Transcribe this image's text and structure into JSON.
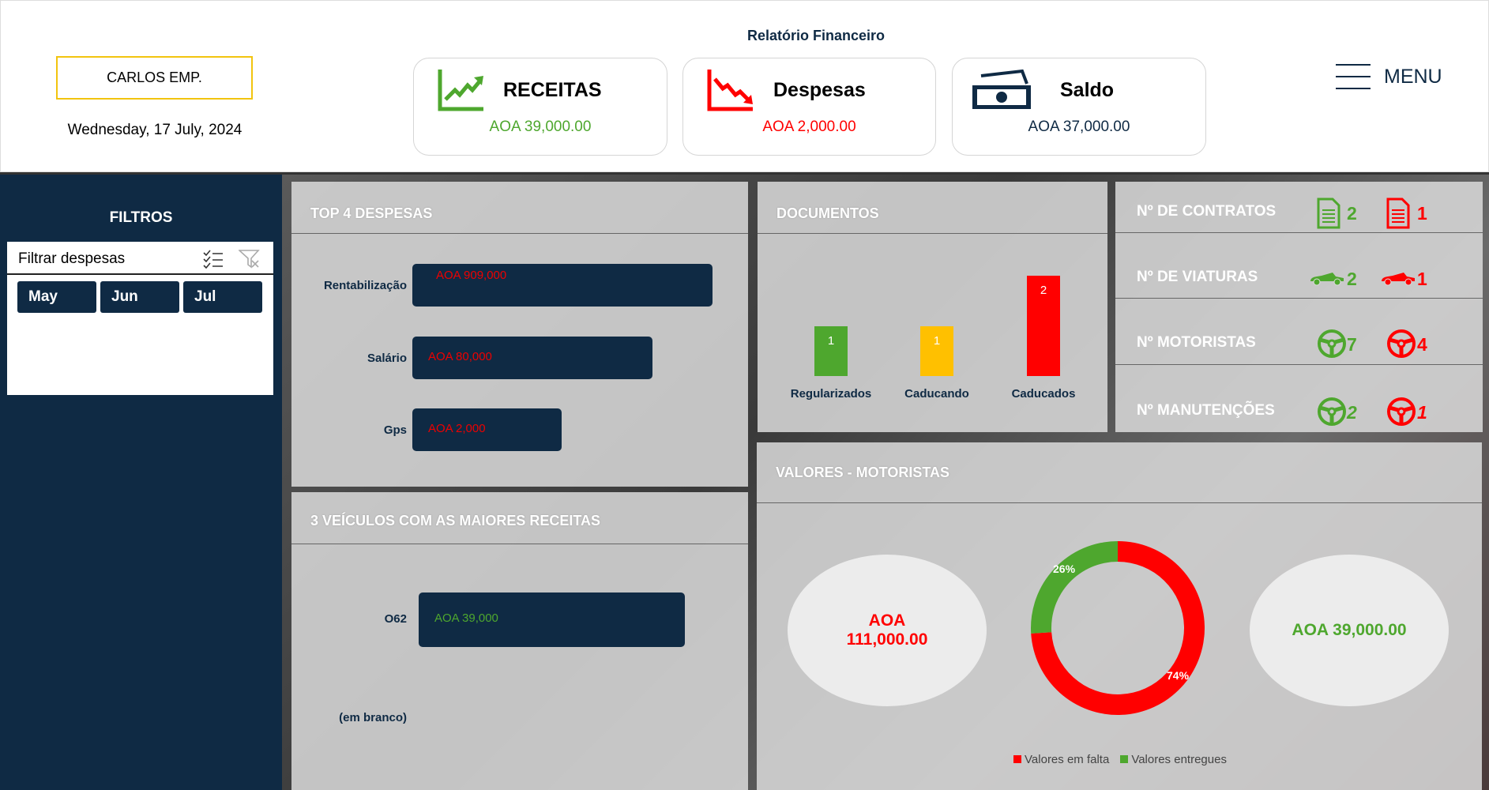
{
  "header": {
    "title": "Relatório Financeiro",
    "company": "CARLOS EMP.",
    "date": "Wednesday, 17 July, 2024",
    "menu_label": "MENU",
    "cards": [
      {
        "label": "RECEITAS",
        "value": "AOA 39,000.00",
        "icon": "chart-up-icon",
        "color": "#4ea72e"
      },
      {
        "label": "Despesas",
        "value": "AOA 2,000.00",
        "icon": "chart-down-icon",
        "color": "#ff0000"
      },
      {
        "label": "Saldo",
        "value": "AOA 37,000.00",
        "icon": "money-icon",
        "color": "#0f2a44"
      }
    ]
  },
  "sidebar": {
    "title": "FILTROS",
    "slicer": {
      "title": "Filtrar despesas",
      "options": [
        "May",
        "Jun",
        "Jul"
      ]
    }
  },
  "top_despesas": {
    "title": "TOP 4 DESPESAS",
    "items": [
      {
        "label": "Rentabilização",
        "value": 909000,
        "text": "AOA 909,000"
      },
      {
        "label": "Salário",
        "value": 80000,
        "text": "AOA 80,000"
      },
      {
        "label": "Gps",
        "value": 2000,
        "text": "AOA 2,000"
      }
    ]
  },
  "veiculos": {
    "title": "3 VEÍCULOS COM AS MAIORES RECEITAS",
    "items": [
      {
        "label": "O62",
        "text": "AOA 39,000"
      },
      {
        "label": "(em branco)",
        "text": ""
      }
    ]
  },
  "documentos": {
    "title": "DOCUMENTOS",
    "items": [
      {
        "label": "Regularizados",
        "value": 1,
        "color": "#4ea72e"
      },
      {
        "label": "Caducando",
        "value": 1,
        "color": "#ffc000"
      },
      {
        "label": "Caducados",
        "value": 2,
        "color": "#ff0000"
      }
    ]
  },
  "counts": [
    {
      "label": "Nº DE CONTRATOS",
      "icon": "document-icon",
      "green": "2",
      "red": "1"
    },
    {
      "label": "Nº DE VIATURAS",
      "icon": "car-icon",
      "green": "2",
      "red": "1"
    },
    {
      "label": "Nº MOTORISTAS",
      "icon": "steering-wheel-icon",
      "green": "7",
      "red": "4"
    },
    {
      "label": "Nº MANUTENÇÕES",
      "icon": "steering-wheel-icon",
      "green": "2",
      "red": "1"
    }
  ],
  "valores": {
    "title": "VALORES - MOTORISTAS",
    "falta": "AOA\n111,000.00",
    "entregues": "AOA 39,000.00",
    "chart_data": {
      "type": "pie",
      "series": [
        {
          "name": "Valores em falta",
          "value": 74,
          "label": "74%",
          "color": "#ff0000"
        },
        {
          "name": "Valores entregues",
          "value": 26,
          "label": "26%",
          "color": "#4ea72e"
        }
      ]
    }
  }
}
